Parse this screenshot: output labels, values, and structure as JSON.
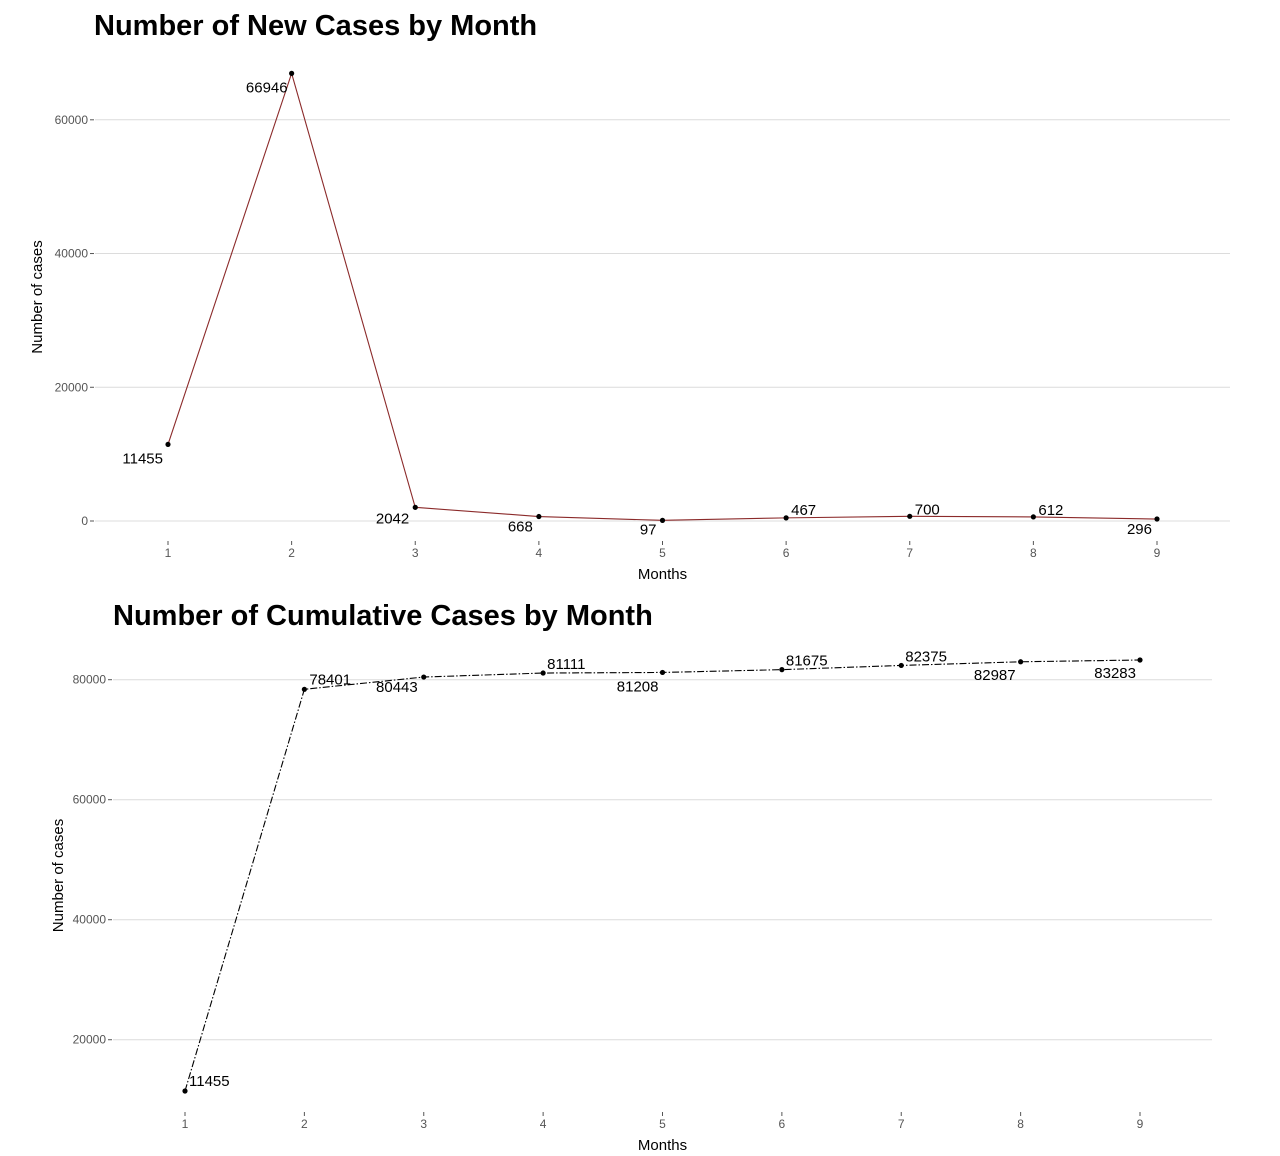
{
  "chart_data": [
    {
      "type": "line",
      "title": "Number of New Cases by Month",
      "xlabel": "Months",
      "ylabel": "Number of cases",
      "x": [
        1,
        2,
        3,
        4,
        5,
        6,
        7,
        8,
        9
      ],
      "series": [
        {
          "values": [
            11455,
            66946,
            2042,
            668,
            97,
            467,
            700,
            612,
            296
          ],
          "color": "#8b2a2a",
          "line_style": "solid"
        }
      ],
      "ylim": [
        0,
        67000
      ],
      "yticks": [
        0,
        20000,
        40000,
        60000
      ],
      "xticks": [
        1,
        2,
        3,
        4,
        5,
        6,
        7,
        8,
        9
      ],
      "grid": true,
      "data_labels": [
        "11455",
        "66946",
        "2042",
        "668",
        "97",
        "467",
        "700",
        "612",
        "296"
      ]
    },
    {
      "type": "line",
      "title": "Number of Cumulative Cases by Month",
      "xlabel": "Months",
      "ylabel": "Number of cases",
      "x": [
        1,
        2,
        3,
        4,
        5,
        6,
        7,
        8,
        9
      ],
      "series": [
        {
          "values": [
            11455,
            78401,
            80443,
            81111,
            81208,
            81675,
            82375,
            82987,
            83283
          ],
          "color": "#000000",
          "line_style": "dashdot"
        }
      ],
      "ylim": [
        11455,
        83283
      ],
      "yticks": [
        20000,
        40000,
        60000,
        80000
      ],
      "xticks": [
        1,
        2,
        3,
        4,
        5,
        6,
        7,
        8,
        9
      ],
      "grid": true,
      "data_labels": [
        "11455",
        "78401",
        "80443",
        "81111",
        "81208",
        "81675",
        "82375",
        "82987",
        "83283"
      ]
    }
  ]
}
